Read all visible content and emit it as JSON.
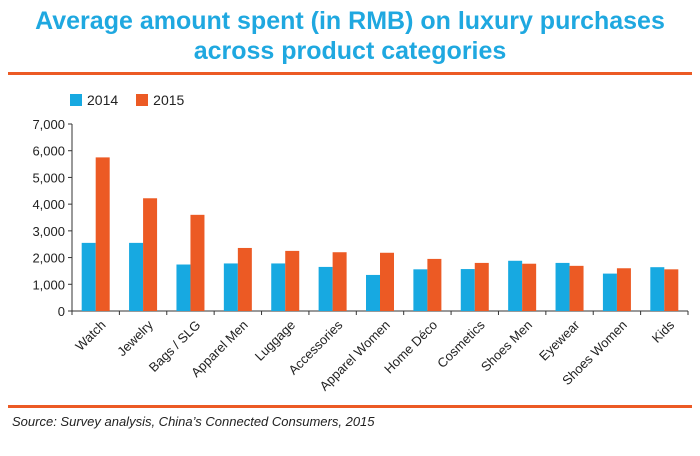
{
  "header": {
    "title_line1": "Average amount spent (in RMB) on luxury purchases",
    "title_line2": "across product categories"
  },
  "source": "Source: Survey analysis, China’s Connected Consumers, 2015",
  "colors": {
    "s2014": "#17a9e1",
    "s2015": "#ec5a24",
    "title": "#1fa8e0",
    "rule": "#ec5a24"
  },
  "chart_data": {
    "type": "bar",
    "categories": [
      "Watch",
      "Jewelry",
      "Bags / SLG",
      "Apparel Men",
      "Luggage",
      "Accessories",
      "Apparel Women",
      "Home Déco",
      "Cosmetics",
      "Shoes Men",
      "Eyewear",
      "Shoes Women",
      "Kids"
    ],
    "series": [
      {
        "name": "2014",
        "values": [
          2550,
          2550,
          1740,
          1780,
          1780,
          1650,
          1350,
          1560,
          1570,
          1880,
          1800,
          1400,
          1640
        ]
      },
      {
        "name": "2015",
        "values": [
          5750,
          4220,
          3600,
          2360,
          2250,
          2200,
          2180,
          1950,
          1800,
          1770,
          1690,
          1600,
          1560
        ]
      }
    ],
    "yticks": [
      "0",
      "1,000",
      "2,000",
      "3,000",
      "4,000",
      "5,000",
      "6,000",
      "7,000"
    ],
    "ylim": [
      0,
      7000
    ],
    "legend": "top-left",
    "grid": false
  }
}
